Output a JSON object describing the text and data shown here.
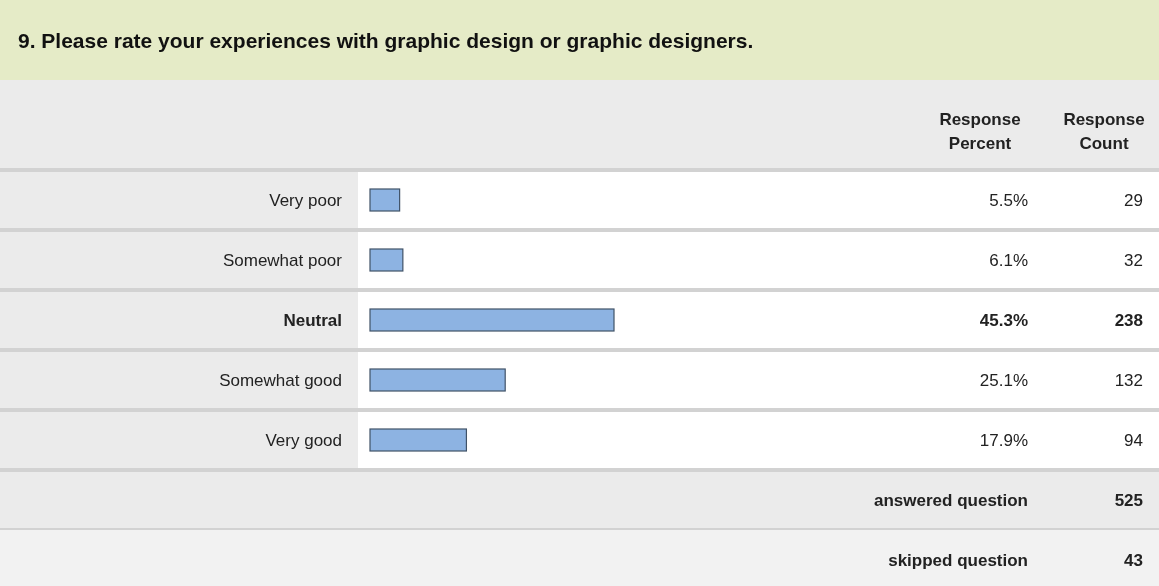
{
  "chart_data": {
    "type": "bar",
    "orientation": "horizontal",
    "title": "9. Please rate your experiences with graphic design or graphic designers.",
    "categories": [
      "Very poor",
      "Somewhat poor",
      "Neutral",
      "Somewhat good",
      "Very good"
    ],
    "series": [
      {
        "color": "#8db3e2",
        "values": [
          5.5,
          6.1,
          45.3,
          25.1,
          17.9
        ],
        "value_labels": [
          "5.5%",
          "6.1%",
          "45.3%",
          "25.1%",
          "17.9%"
        ]
      }
    ],
    "annotations": [
      "Response Percent",
      "Response Count",
      "29",
      "32",
      "238",
      "132",
      "94",
      "answered question",
      "525",
      "skipped question",
      "43"
    ]
  }
}
